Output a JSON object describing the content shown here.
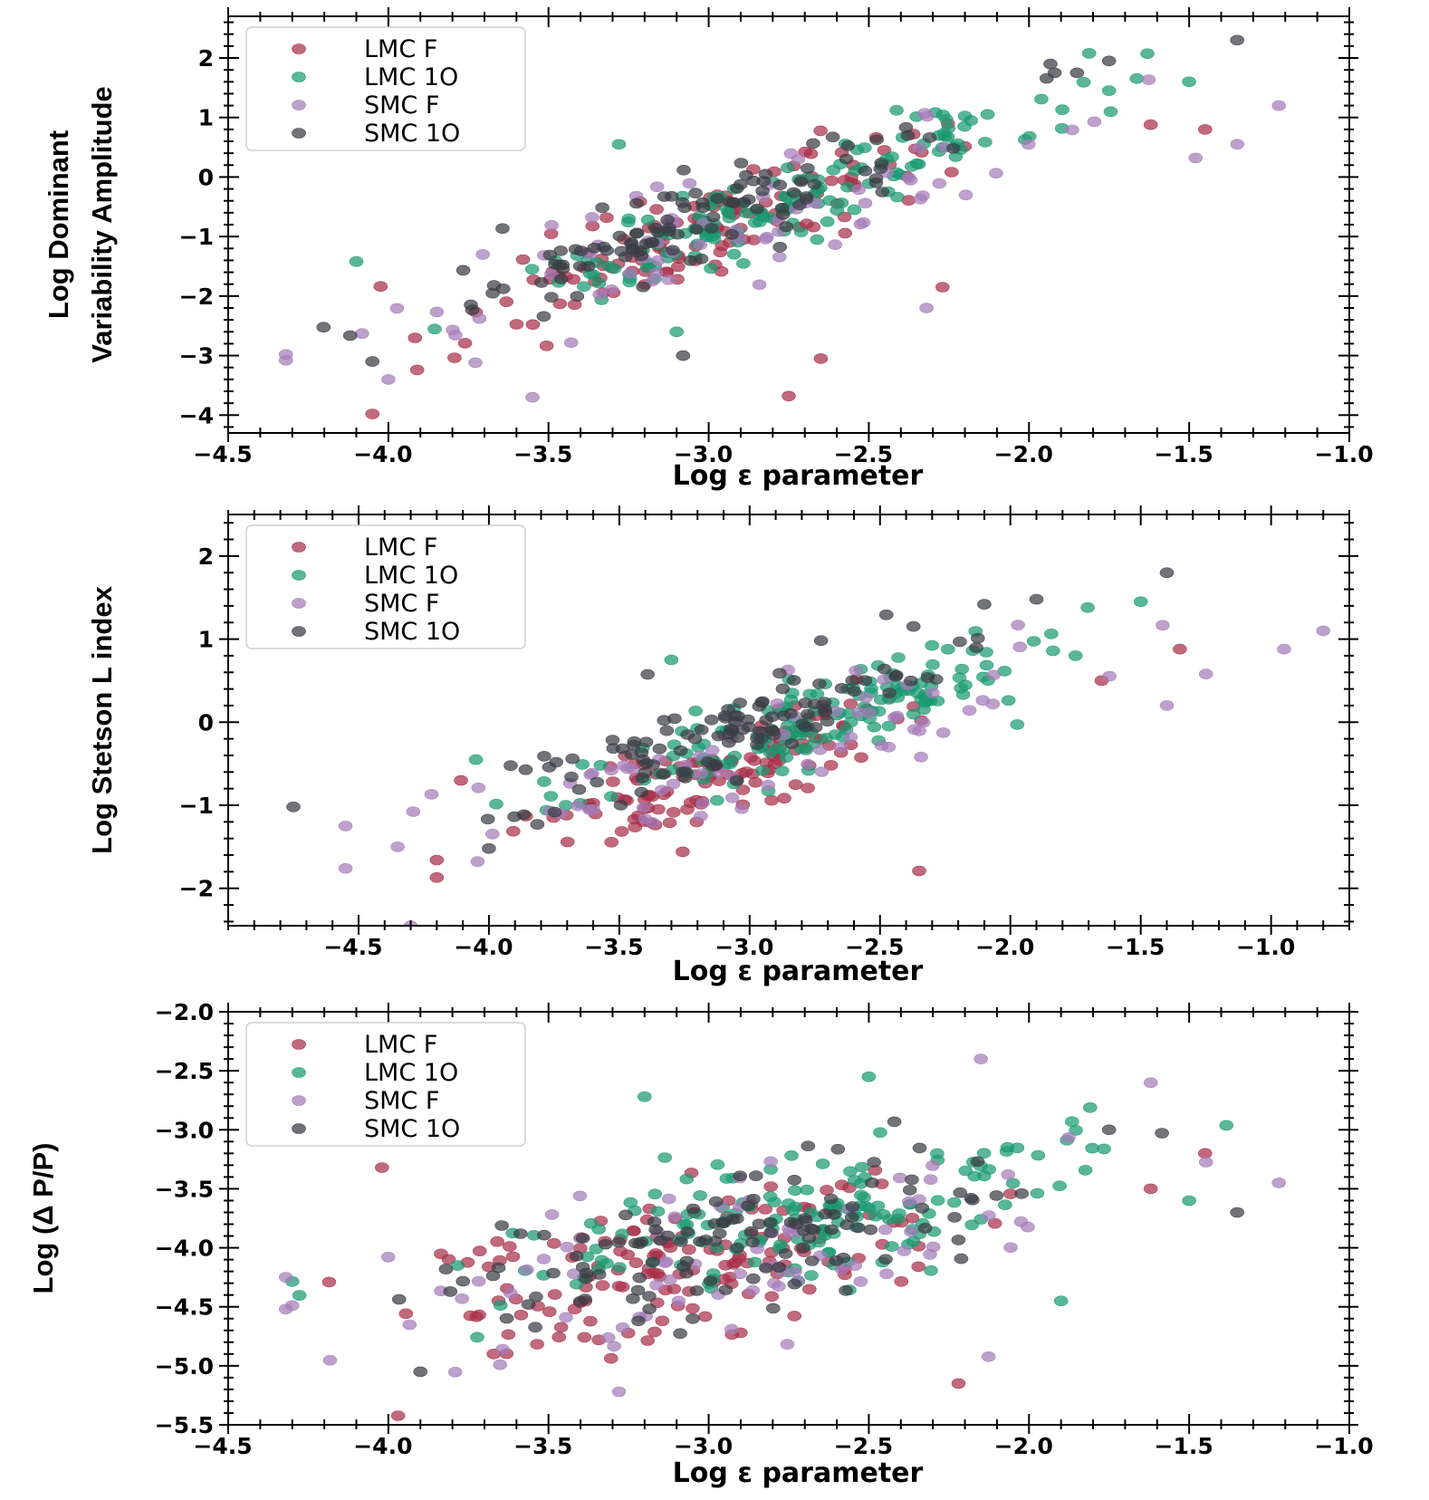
{
  "chart_data": [
    {
      "type": "scatter",
      "xlabel": "Log ε parameter",
      "ylabel": [
        "Log Dominant",
        "Variability Amplitude"
      ],
      "xlim": [
        -4.5,
        -1.0
      ],
      "ylim": [
        -4.3,
        2.7
      ],
      "xticks": [
        -4.5,
        -4.0,
        -3.5,
        -3.0,
        -2.5,
        -2.0,
        -1.5,
        -1.0
      ],
      "xtick_labels": [
        "−4.5",
        "−4.0",
        "−3.5",
        "−3.0",
        "−2.5",
        "−2.0",
        "−1.5",
        "−1.0"
      ],
      "yticks": [
        2,
        1,
        0,
        -1,
        -2,
        -3,
        -4
      ],
      "ytick_labels": [
        "2",
        "1",
        "0",
        "−1",
        "−2",
        "−3",
        "−4"
      ],
      "legend": [
        "LMC F",
        "LMC 1O",
        "SMC F",
        "SMC 1O"
      ],
      "legend_position": "top-left",
      "series": [
        {
          "name": "LMC F",
          "color": "#a8304a",
          "n": 130,
          "trend": {
            "slope": 1.95,
            "intercept": 4.9
          },
          "x_mean": -3.05,
          "x_sd": 0.35,
          "scatter": 0.42,
          "outliers": [
            [
              -4.05,
              -3.98
            ],
            [
              -2.75,
              -3.68
            ],
            [
              -2.27,
              -1.85
            ],
            [
              -2.65,
              -3.05
            ],
            [
              -1.45,
              0.8
            ],
            [
              -1.62,
              0.88
            ]
          ]
        },
        {
          "name": "LMC 1O",
          "color": "#1a9a72",
          "n": 150,
          "trend": {
            "slope": 1.95,
            "intercept": 4.95
          },
          "x_mean": -2.75,
          "x_sd": 0.45,
          "scatter": 0.35,
          "outliers": [
            [
              -4.1,
              -1.42
            ],
            [
              -3.28,
              0.55
            ],
            [
              -1.5,
              1.6
            ],
            [
              -1.75,
              1.45
            ],
            [
              -3.1,
              -2.6
            ]
          ]
        },
        {
          "name": "SMC F",
          "color": "#a57cb9",
          "n": 70,
          "trend": {
            "slope": 1.6,
            "intercept": 3.8
          },
          "x_mean": -2.9,
          "x_sd": 0.6,
          "scatter": 0.5,
          "outliers": [
            [
              -4.32,
              -2.98
            ],
            [
              -4.32,
              -3.08
            ],
            [
              -4.0,
              -3.4
            ],
            [
              -3.55,
              -3.7
            ],
            [
              -1.22,
              1.2
            ],
            [
              -1.35,
              0.55
            ],
            [
              -2.32,
              -2.2
            ],
            [
              -1.48,
              0.32
            ]
          ]
        },
        {
          "name": "SMC 1O",
          "color": "#3a3d44",
          "n": 110,
          "trend": {
            "slope": 1.9,
            "intercept": 5.05
          },
          "x_mean": -3.0,
          "x_sd": 0.45,
          "scatter": 0.33,
          "outliers": [
            [
              -1.35,
              2.3
            ],
            [
              -1.75,
              1.95
            ],
            [
              -1.92,
              1.75
            ],
            [
              -1.85,
              1.75
            ],
            [
              -4.05,
              -3.1
            ],
            [
              -3.08,
              -3.0
            ]
          ]
        }
      ]
    },
    {
      "type": "scatter",
      "xlabel": "Log ε parameter",
      "ylabel": [
        "Log Stetson L index"
      ],
      "xlim": [
        -5.0,
        -0.7
      ],
      "ylim": [
        -2.45,
        2.5
      ],
      "xticks": [
        -4.5,
        -4.0,
        -3.5,
        -3.0,
        -2.5,
        -2.0,
        -1.5,
        -1.0
      ],
      "xtick_labels": [
        "−4.5",
        "−4.0",
        "−3.5",
        "−3.0",
        "−2.5",
        "−2.0",
        "−1.5",
        "−1.0"
      ],
      "yticks": [
        2,
        1,
        0,
        -1,
        -2
      ],
      "ytick_labels": [
        "2",
        "1",
        "0",
        "−1",
        "−2"
      ],
      "legend": [
        "LMC F",
        "LMC 1O",
        "SMC F",
        "SMC 1O"
      ],
      "legend_position": "top-left",
      "series": [
        {
          "name": "LMC F",
          "color": "#a8304a",
          "n": 130,
          "trend": {
            "slope": 1.0,
            "intercept": 2.5
          },
          "x_mean": -3.1,
          "x_sd": 0.35,
          "scatter": 0.3,
          "outliers": [
            [
              -4.2,
              -1.87
            ],
            [
              -4.2,
              -1.66
            ],
            [
              -2.35,
              -1.79
            ],
            [
              -1.35,
              0.88
            ],
            [
              -1.65,
              0.5
            ]
          ]
        },
        {
          "name": "LMC 1O",
          "color": "#1a9a72",
          "n": 150,
          "trend": {
            "slope": 1.0,
            "intercept": 2.75
          },
          "x_mean": -2.8,
          "x_sd": 0.45,
          "scatter": 0.25,
          "outliers": [
            [
              -1.5,
              1.45
            ],
            [
              -3.3,
              0.75
            ],
            [
              -4.05,
              -0.45
            ],
            [
              -1.75,
              0.8
            ]
          ]
        },
        {
          "name": "SMC F",
          "color": "#a57cb9",
          "n": 70,
          "trend": {
            "slope": 0.95,
            "intercept": 2.4
          },
          "x_mean": -2.9,
          "x_sd": 0.7,
          "scatter": 0.35,
          "outliers": [
            [
              -4.55,
              -1.76
            ],
            [
              -4.55,
              -1.25
            ],
            [
              -4.35,
              -1.5
            ],
            [
              -4.3,
              -2.45
            ],
            [
              -0.8,
              1.1
            ],
            [
              -0.95,
              0.88
            ],
            [
              -1.25,
              0.58
            ],
            [
              -1.4,
              0.2
            ]
          ]
        },
        {
          "name": "SMC 1O",
          "color": "#3a3d44",
          "n": 110,
          "trend": {
            "slope": 1.05,
            "intercept": 3.15
          },
          "x_mean": -3.0,
          "x_sd": 0.45,
          "scatter": 0.27,
          "outliers": [
            [
              -4.75,
              -1.02
            ],
            [
              -1.4,
              1.8
            ],
            [
              -1.9,
              1.48
            ],
            [
              -2.1,
              1.42
            ],
            [
              -4.0,
              -1.52
            ]
          ]
        }
      ]
    },
    {
      "type": "scatter",
      "xlabel": "Log ε parameter",
      "ylabel": [
        "Log (Δ P/P)"
      ],
      "xlim": [
        -4.5,
        -1.0
      ],
      "ylim": [
        -5.5,
        -2.0
      ],
      "xticks": [
        -4.5,
        -4.0,
        -3.5,
        -3.0,
        -2.5,
        -2.0,
        -1.5,
        -1.0
      ],
      "xtick_labels": [
        "−4.5",
        "−4.0",
        "−3.5",
        "−3.0",
        "−2.5",
        "−2.0",
        "−1.5",
        "−1.0"
      ],
      "yticks": [
        -2.0,
        -2.5,
        -3.0,
        -3.5,
        -4.0,
        -4.5,
        -5.0,
        -5.5
      ],
      "ytick_labels": [
        "−2.0",
        "−2.5",
        "−3.0",
        "−3.5",
        "−4.0",
        "−4.5",
        "−5.0",
        "−5.5"
      ],
      "legend": [
        "LMC F",
        "LMC 1O",
        "SMC F",
        "SMC 1O"
      ],
      "legend_position": "top-left",
      "series": [
        {
          "name": "LMC F",
          "color": "#a8304a",
          "n": 150,
          "trend": {
            "slope": 0.5,
            "intercept": -2.55
          },
          "x_mean": -3.1,
          "x_sd": 0.4,
          "scatter": 0.32,
          "outliers": [
            [
              -2.22,
              -5.15
            ],
            [
              -1.45,
              -3.2
            ],
            [
              -1.62,
              -3.5
            ],
            [
              -4.02,
              -3.32
            ]
          ]
        },
        {
          "name": "LMC 1O",
          "color": "#1a9a72",
          "n": 160,
          "trend": {
            "slope": 0.5,
            "intercept": -2.4
          },
          "x_mean": -2.7,
          "x_sd": 0.45,
          "scatter": 0.3,
          "outliers": [
            [
              -2.5,
              -2.55
            ],
            [
              -3.2,
              -2.72
            ],
            [
              -1.5,
              -3.6
            ],
            [
              -1.9,
              -4.45
            ]
          ]
        },
        {
          "name": "SMC F",
          "color": "#a57cb9",
          "n": 80,
          "trend": {
            "slope": 0.45,
            "intercept": -2.75
          },
          "x_mean": -2.9,
          "x_sd": 0.65,
          "scatter": 0.38,
          "outliers": [
            [
              -2.15,
              -2.4
            ],
            [
              -1.62,
              -2.6
            ],
            [
              -1.22,
              -3.45
            ],
            [
              -4.32,
              -4.25
            ],
            [
              -4.32,
              -4.52
            ],
            [
              -3.28,
              -5.22
            ]
          ]
        },
        {
          "name": "SMC 1O",
          "color": "#3a3d44",
          "n": 120,
          "trend": {
            "slope": 0.5,
            "intercept": -2.45
          },
          "x_mean": -2.95,
          "x_sd": 0.5,
          "scatter": 0.3,
          "outliers": [
            [
              -3.9,
              -5.05
            ],
            [
              -1.35,
              -3.7
            ],
            [
              -1.75,
              -3.0
            ]
          ]
        }
      ]
    }
  ]
}
